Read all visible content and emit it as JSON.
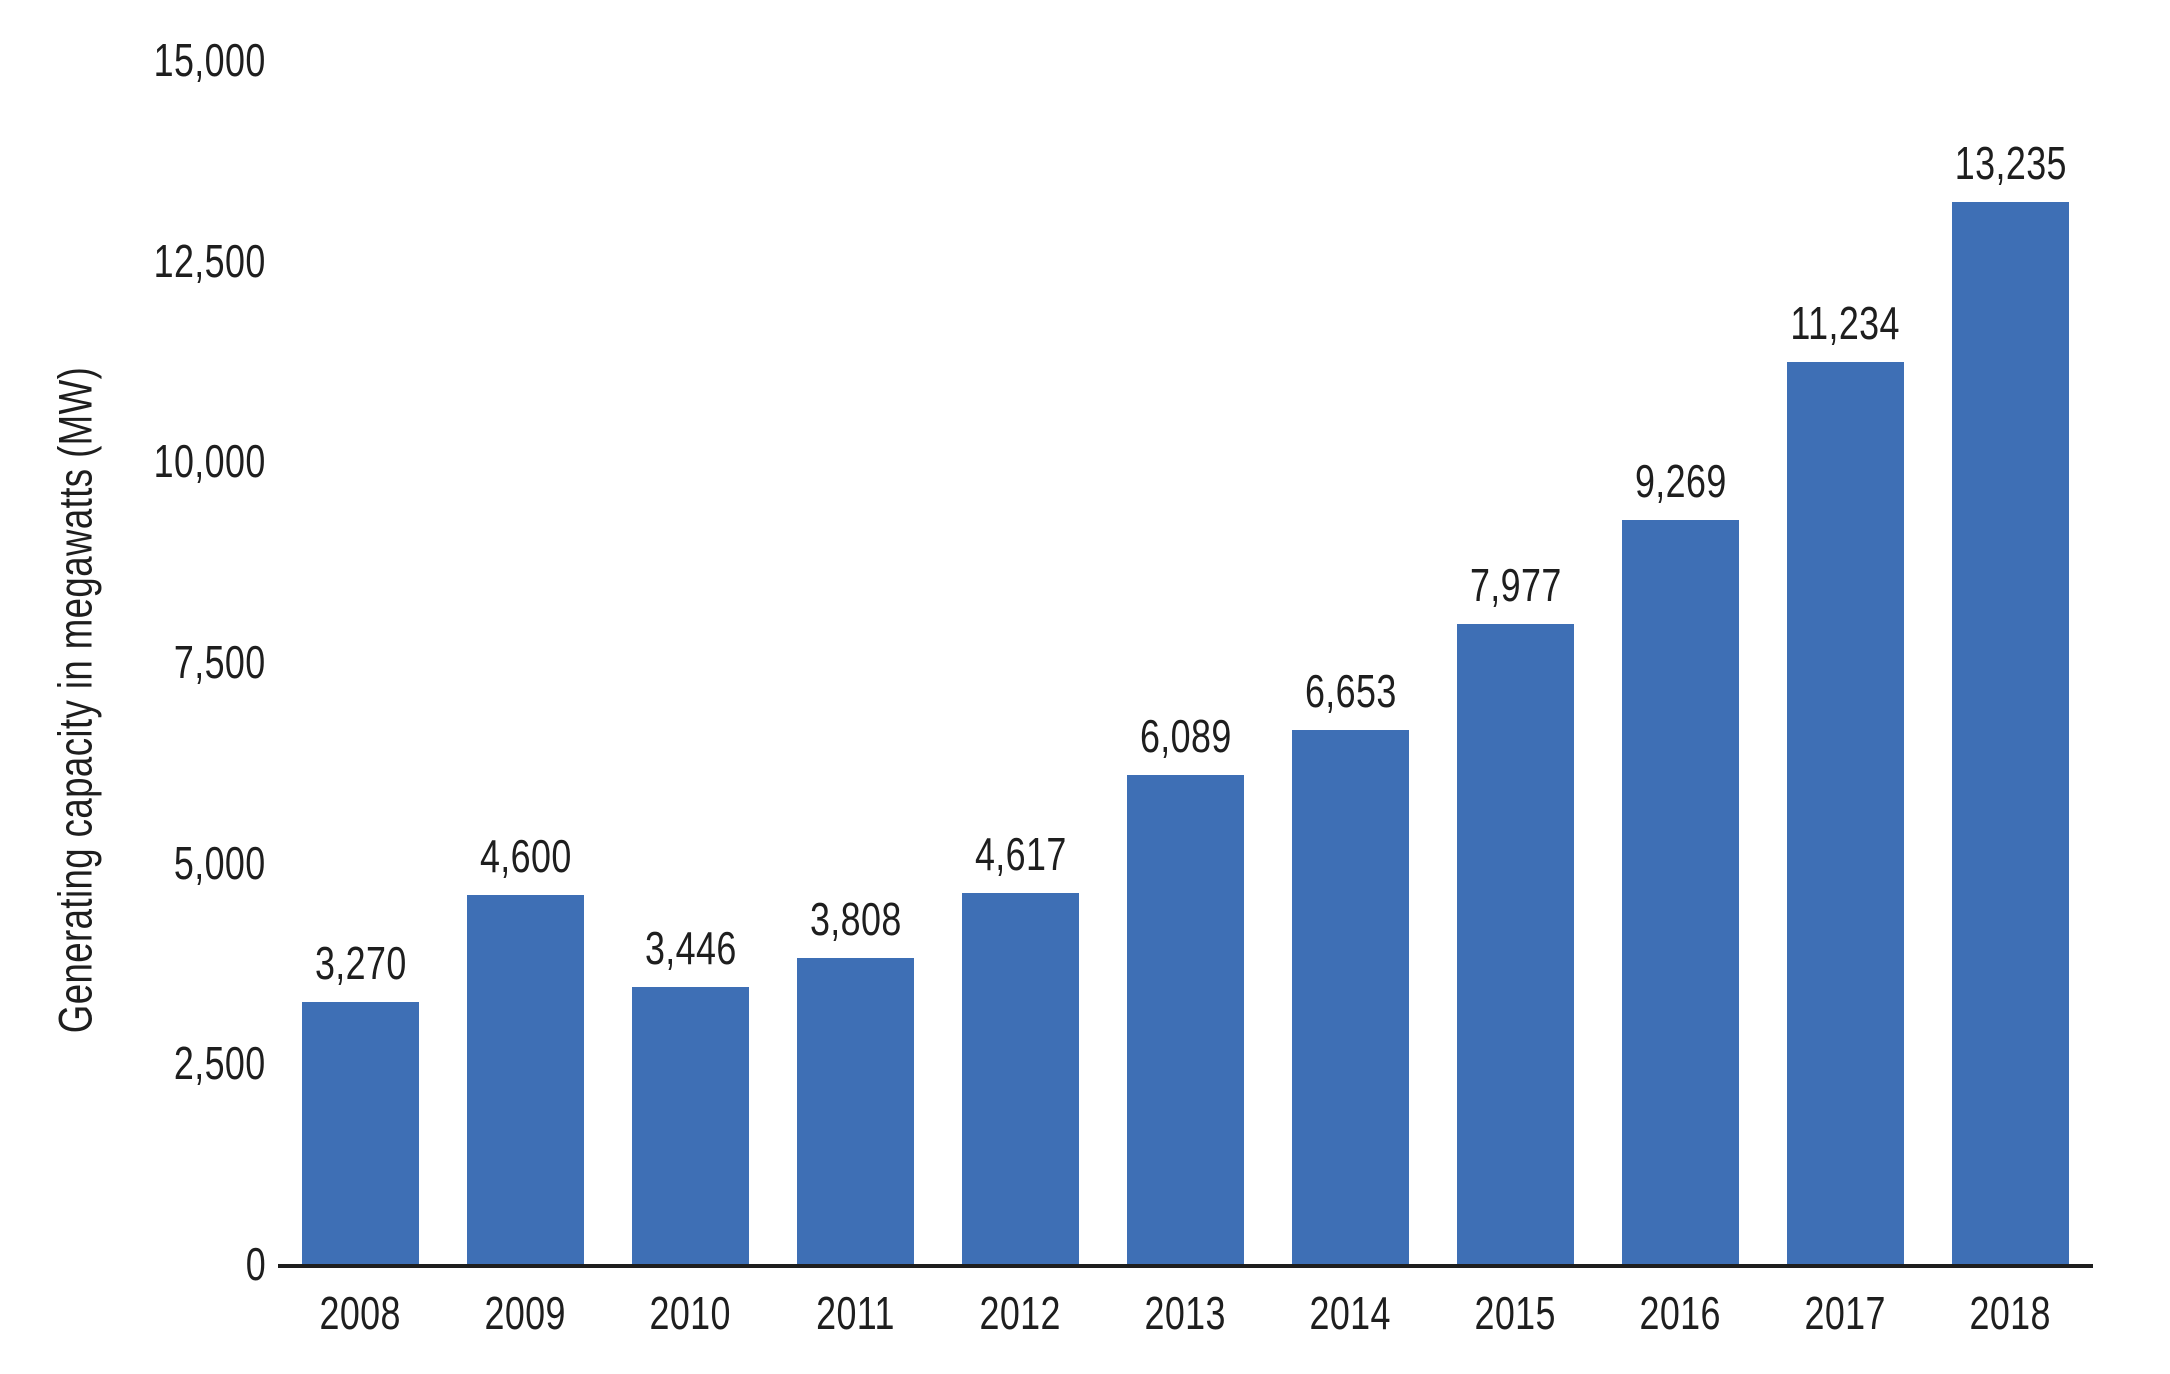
{
  "chart_data": {
    "type": "bar",
    "title": "",
    "xlabel": "",
    "ylabel": "Generating capacity in megawatts (MW)",
    "categories": [
      "2008",
      "2009",
      "2010",
      "2011",
      "2012",
      "2013",
      "2014",
      "2015",
      "2016",
      "2017",
      "2018"
    ],
    "values": [
      3270,
      4600,
      3446,
      3808,
      4617,
      6089,
      6653,
      7977,
      9269,
      11234,
      13235
    ],
    "value_labels": [
      "3,270",
      "4,600",
      "3,446",
      "3,808",
      "4,617",
      "6,089",
      "6,653",
      "7,977",
      "9,269",
      "11,234",
      "13,235"
    ],
    "ylim": [
      0,
      15000
    ],
    "yticks": [
      {
        "value": 0,
        "label": "0"
      },
      {
        "value": 2500,
        "label": "2,500"
      },
      {
        "value": 5000,
        "label": "5,000"
      },
      {
        "value": 7500,
        "label": "7,500"
      },
      {
        "value": 10000,
        "label": "10,000"
      },
      {
        "value": 12500,
        "label": "12,500"
      },
      {
        "value": 15000,
        "label": "15,000"
      }
    ],
    "grid": false,
    "legend": null,
    "bar_color": "#3E6FB5",
    "axis_color": "#1E1E1E",
    "text_color": "#1E1E1E"
  }
}
